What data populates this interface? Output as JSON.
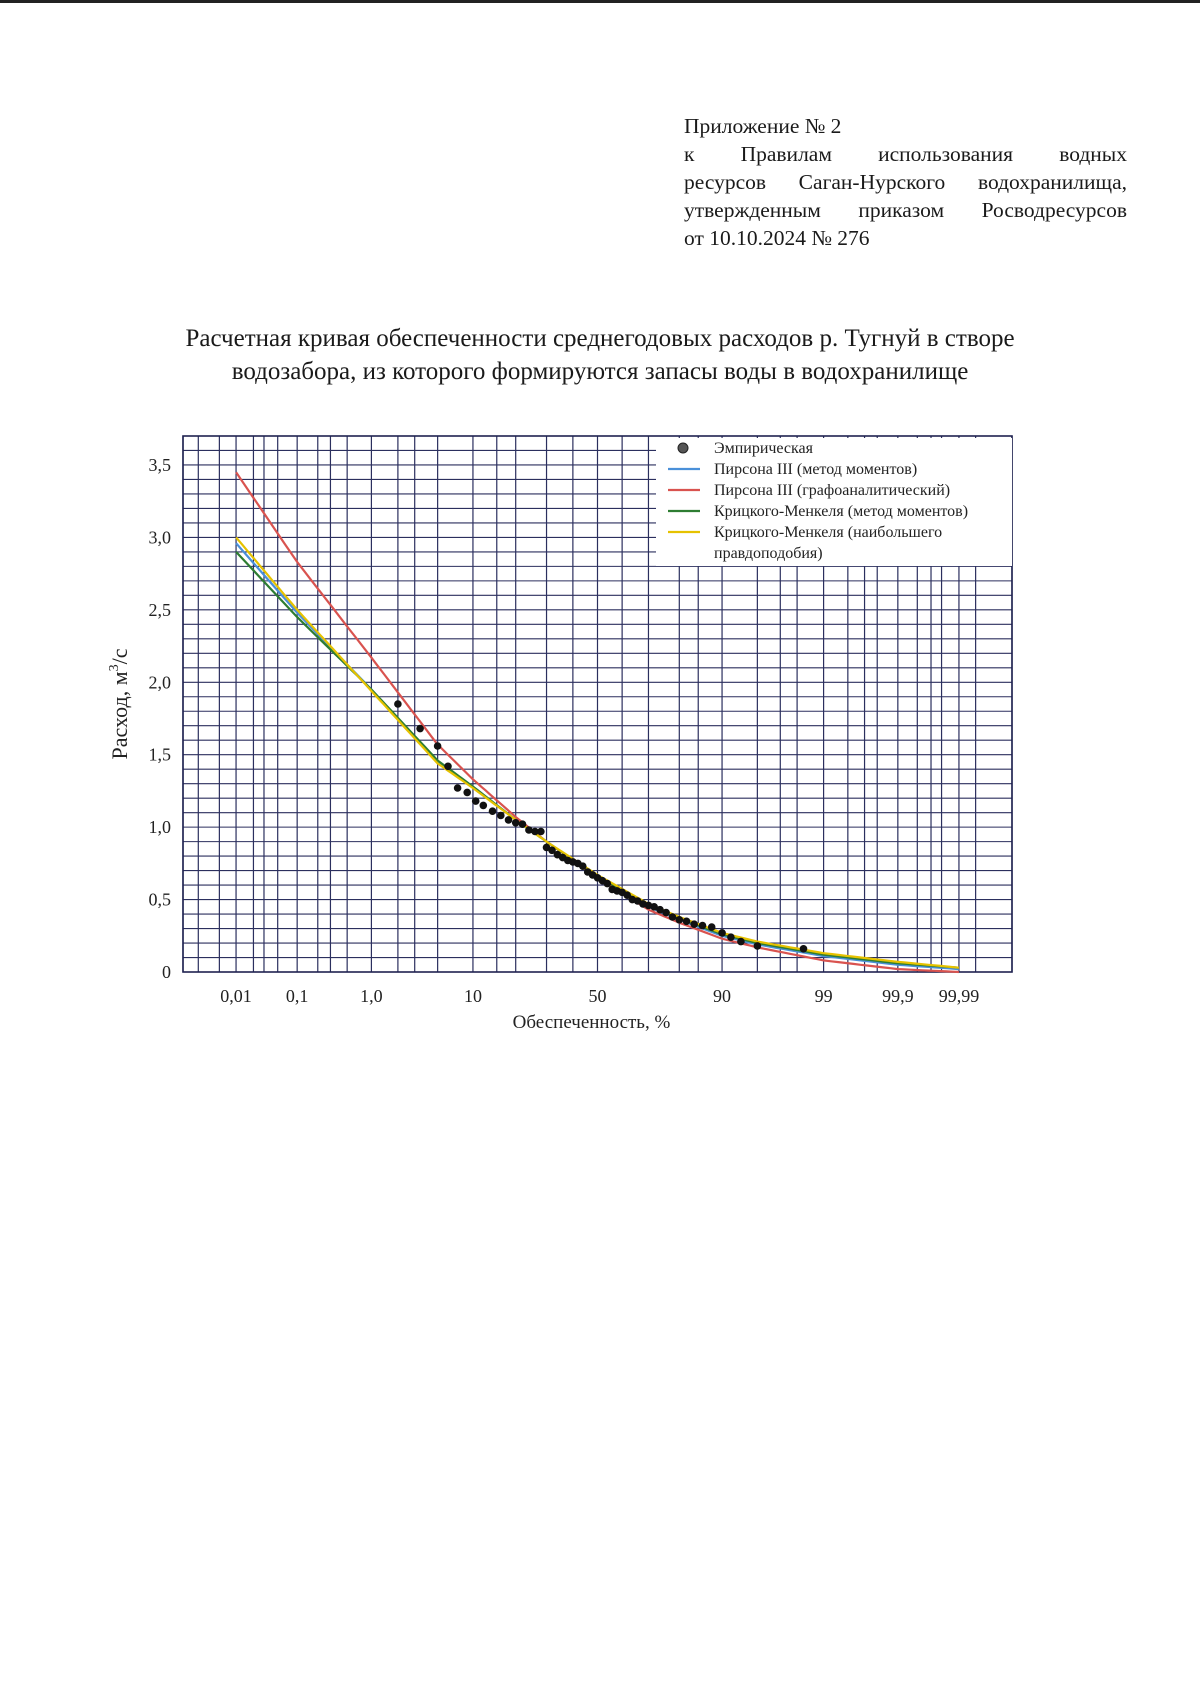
{
  "annex": {
    "line1": "Приложение № 2",
    "line2": "к Правилам использования водных",
    "line3": "ресурсов Саган-Нурского водохранилища,",
    "line4": "утвержденным приказом Росводресурсов",
    "line5": "от 10.10.2024 № 276"
  },
  "title": {
    "line1": "Расчетная кривая обеспеченности среднегодовых расходов р. Тугнуй в створе",
    "line2": "водозабора, из которого формируются запасы воды в водохранилище"
  },
  "chart_data": {
    "type": "line",
    "xscale": "probability",
    "xlabel": "Обеспеченность, %",
    "ylabel_main": "Расход, м",
    "ylabel_sup": "3",
    "ylabel_tail": "/с",
    "ylim": [
      0,
      3.7
    ],
    "xlim": [
      0.001,
      99.999
    ],
    "grid": true,
    "legend_position": "top-right",
    "x_ticks": [
      0.01,
      0.1,
      1.0,
      10,
      50,
      90,
      99,
      99.9,
      99.99
    ],
    "x_tick_labels": [
      "0,01",
      "0,1",
      "1,0",
      "10",
      "50",
      "90",
      "99",
      "99,9",
      "99,99"
    ],
    "y_ticks": [
      0,
      0.5,
      1.0,
      1.5,
      2.0,
      2.5,
      3.0,
      3.5
    ],
    "y_tick_labels": [
      "0",
      "0,5",
      "1,0",
      "1,5",
      "2,0",
      "2,5",
      "3,0",
      "3,5"
    ],
    "grid_x": [
      0.001,
      0.002,
      0.005,
      0.01,
      0.02,
      0.03,
      0.05,
      0.1,
      0.2,
      0.3,
      0.5,
      1,
      2,
      3,
      5,
      10,
      15,
      20,
      30,
      40,
      50,
      60,
      70,
      80,
      85,
      90,
      95,
      97,
      98,
      99,
      99.5,
      99.7,
      99.8,
      99.9,
      99.95,
      99.97,
      99.98,
      99.99,
      99.995,
      99.999
    ],
    "grid_y_step": 0.1,
    "empirical": {
      "name": "Эмпирическая",
      "color": "#3a3a3a",
      "points": [
        [
          2.0,
          1.85
        ],
        [
          3.4,
          1.68
        ],
        [
          5.0,
          1.56
        ],
        [
          6.2,
          1.42
        ],
        [
          7.5,
          1.27
        ],
        [
          9.0,
          1.24
        ],
        [
          10.5,
          1.18
        ],
        [
          12.0,
          1.15
        ],
        [
          14.0,
          1.11
        ],
        [
          16.0,
          1.08
        ],
        [
          18.0,
          1.05
        ],
        [
          20.0,
          1.03
        ],
        [
          22.0,
          1.02
        ],
        [
          24.0,
          0.98
        ],
        [
          26.0,
          0.97
        ],
        [
          28.0,
          0.97
        ],
        [
          30.0,
          0.86
        ],
        [
          32.0,
          0.84
        ],
        [
          34.0,
          0.81
        ],
        [
          36.0,
          0.79
        ],
        [
          38.0,
          0.77
        ],
        [
          40.0,
          0.76
        ],
        [
          42.0,
          0.75
        ],
        [
          44.0,
          0.73
        ],
        [
          46.0,
          0.69
        ],
        [
          48.0,
          0.67
        ],
        [
          50.0,
          0.65
        ],
        [
          52.0,
          0.63
        ],
        [
          54.0,
          0.61
        ],
        [
          56.0,
          0.57
        ],
        [
          58.0,
          0.56
        ],
        [
          60.0,
          0.55
        ],
        [
          62.0,
          0.53
        ],
        [
          64.0,
          0.5
        ],
        [
          66.0,
          0.49
        ],
        [
          68.0,
          0.47
        ],
        [
          70.0,
          0.46
        ],
        [
          72.0,
          0.45
        ],
        [
          74.0,
          0.43
        ],
        [
          76.0,
          0.41
        ],
        [
          78.0,
          0.38
        ],
        [
          80.0,
          0.36
        ],
        [
          82.0,
          0.35
        ],
        [
          84.0,
          0.33
        ],
        [
          86.0,
          0.32
        ],
        [
          88.0,
          0.31
        ],
        [
          90.0,
          0.27
        ],
        [
          91.5,
          0.24
        ],
        [
          93.0,
          0.21
        ],
        [
          95.0,
          0.18
        ],
        [
          98.3,
          0.16
        ]
      ]
    },
    "series": [
      {
        "name": "Пирсона III (метод моментов)",
        "color": "#4a90d9",
        "x": [
          0.01,
          0.1,
          1.0,
          5,
          10,
          20,
          30,
          50,
          70,
          80,
          90,
          95,
          99,
          99.9,
          99.99
        ],
        "y": [
          2.96,
          2.48,
          1.95,
          1.45,
          1.28,
          1.05,
          0.9,
          0.66,
          0.45,
          0.36,
          0.25,
          0.19,
          0.11,
          0.05,
          0.02
        ]
      },
      {
        "name": "Пирсона III (графоаналитический)",
        "color": "#d9534f",
        "x": [
          0.01,
          0.1,
          1.0,
          5,
          10,
          20,
          30,
          50,
          70,
          80,
          90,
          95,
          99,
          99.9,
          99.99
        ],
        "y": [
          3.45,
          2.83,
          2.17,
          1.57,
          1.33,
          1.07,
          0.9,
          0.65,
          0.43,
          0.34,
          0.23,
          0.17,
          0.08,
          0.02,
          0.0
        ]
      },
      {
        "name": "Крицкого-Менкеля (метод моментов)",
        "color": "#2e7d32",
        "x": [
          0.01,
          0.1,
          1.0,
          5,
          10,
          20,
          30,
          50,
          70,
          80,
          90,
          95,
          99,
          99.9,
          99.99
        ],
        "y": [
          2.9,
          2.45,
          1.95,
          1.46,
          1.28,
          1.05,
          0.9,
          0.66,
          0.46,
          0.37,
          0.26,
          0.2,
          0.12,
          0.06,
          0.03
        ]
      },
      {
        "name": "Крицкого-Менкеля (наибольшего правдоподобия)",
        "name_line1": "Крицкого-Менкеля (наибольшего",
        "name_line2": "правдоподобия)",
        "color": "#e6c200",
        "x": [
          0.01,
          0.1,
          1.0,
          5,
          10,
          20,
          30,
          50,
          70,
          80,
          90,
          95,
          99,
          99.9,
          99.99
        ],
        "y": [
          3.0,
          2.5,
          1.94,
          1.44,
          1.27,
          1.05,
          0.9,
          0.67,
          0.47,
          0.38,
          0.27,
          0.21,
          0.13,
          0.07,
          0.03
        ]
      }
    ]
  }
}
